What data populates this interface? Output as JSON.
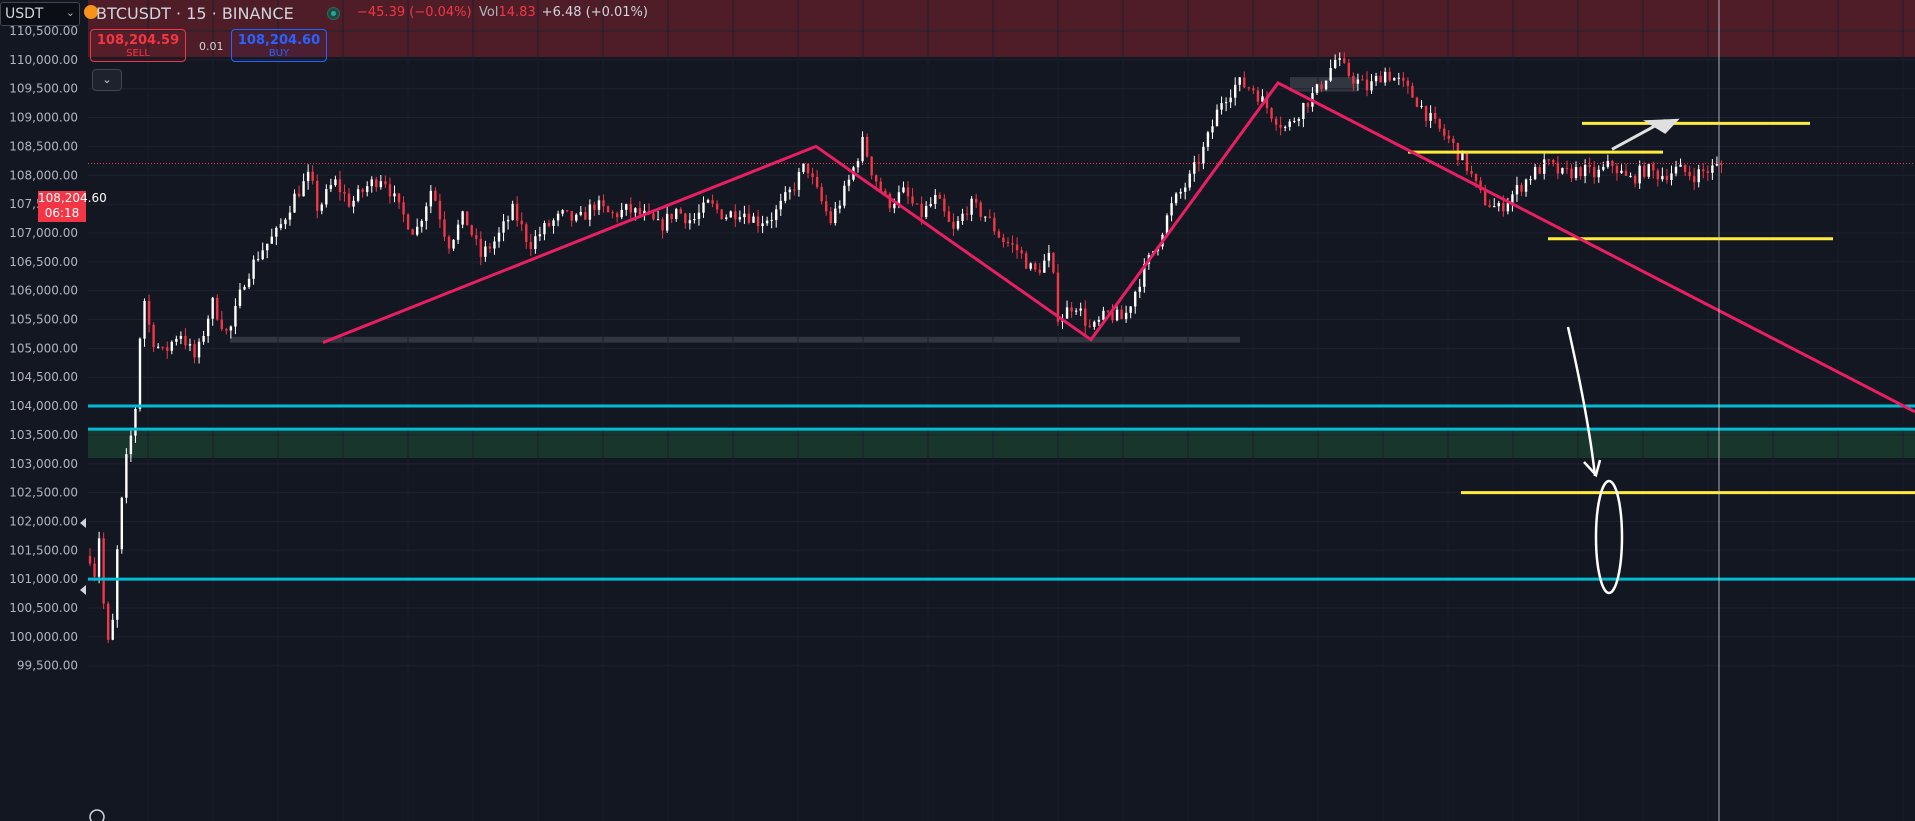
{
  "header": {
    "symbol_select": "USDT",
    "title": "BTCUSDT · 15 · BINANCE",
    "change": "−45.39 (−0.04%)",
    "vol_label": "Vol",
    "vol_value": "14.83",
    "extra": "+6.48 (+0.01%)"
  },
  "trade": {
    "sell_price": "108,204.59",
    "sell_label": "SELL",
    "spread": "0.01",
    "buy_price": "108,204.60",
    "buy_label": "BUY"
  },
  "last_price": {
    "price": "108,204.60",
    "countdown": "06:18"
  },
  "colors": {
    "background": "#131722",
    "candle_up": "#ffffff",
    "candle_down": "#f23645",
    "zigzag": "#e91e63",
    "level_yellow": "#ffeb3b",
    "level_cyan": "#00bcd4",
    "supply_zone": "#5a1f28",
    "demand_zone": "#1b3a2e",
    "annotation": "#ffffff"
  },
  "chart_data": {
    "type": "candlestick",
    "symbol": "BTCUSDT",
    "interval": "15",
    "exchange": "BINANCE",
    "ylim": [
      99300,
      110700
    ],
    "price_axis_ticks": [
      "110,500.00",
      "110,000.00",
      "109,500.00",
      "109,000.00",
      "108,500.00",
      "108,000.00",
      "107,500.00",
      "107,000.00",
      "106,500.00",
      "106,000.00",
      "105,500.00",
      "105,000.00",
      "104,500.00",
      "104,000.00",
      "103,500.00",
      "103,000.00",
      "102,500.00",
      "102,000.00",
      "101,500.00",
      "101,000.00",
      "100,500.00",
      "100,000.00",
      "99,500.00"
    ],
    "price_path": [
      [
        0,
        101400
      ],
      [
        0.5,
        101000
      ],
      [
        1,
        102000
      ],
      [
        1.8,
        100300
      ],
      [
        2.5,
        99600
      ],
      [
        3.5,
        101800
      ],
      [
        4.5,
        103100
      ],
      [
        5.5,
        103800
      ],
      [
        6.5,
        106000
      ],
      [
        7.5,
        105200
      ],
      [
        9,
        104900
      ],
      [
        11,
        105300
      ],
      [
        13,
        104800
      ],
      [
        15,
        105800
      ],
      [
        17,
        105200
      ],
      [
        19,
        106200
      ],
      [
        21,
        106700
      ],
      [
        23,
        107000
      ],
      [
        25,
        107600
      ],
      [
        27,
        108000
      ],
      [
        28,
        107400
      ],
      [
        30,
        107900
      ],
      [
        32,
        107500
      ],
      [
        34,
        107800
      ],
      [
        36,
        108000
      ],
      [
        38,
        107400
      ],
      [
        40,
        107000
      ],
      [
        42,
        107800
      ],
      [
        44,
        106800
      ],
      [
        46,
        107300
      ],
      [
        48,
        106600
      ],
      [
        50,
        106900
      ],
      [
        52,
        107400
      ],
      [
        54,
        106800
      ],
      [
        56,
        107100
      ],
      [
        58,
        107300
      ],
      [
        60,
        107200
      ],
      [
        62,
        107500
      ],
      [
        64,
        107300
      ],
      [
        66,
        107400
      ],
      [
        68,
        107300
      ],
      [
        70,
        107100
      ],
      [
        72,
        107400
      ],
      [
        74,
        107200
      ],
      [
        76,
        107500
      ],
      [
        78,
        107300
      ],
      [
        80,
        107400
      ],
      [
        82,
        107200
      ],
      [
        84,
        107300
      ],
      [
        86,
        107700
      ],
      [
        88,
        108200
      ],
      [
        89,
        107800
      ],
      [
        91,
        107200
      ],
      [
        93,
        107800
      ],
      [
        95,
        108600
      ],
      [
        96,
        108100
      ],
      [
        98,
        107500
      ],
      [
        100,
        107700
      ],
      [
        102,
        107300
      ],
      [
        104,
        107600
      ],
      [
        106,
        107000
      ],
      [
        108,
        107500
      ],
      [
        110,
        107300
      ],
      [
        112,
        106900
      ],
      [
        114,
        106700
      ],
      [
        116,
        106300
      ],
      [
        118,
        106600
      ],
      [
        119,
        105500
      ],
      [
        121,
        105800
      ],
      [
        123,
        105300
      ],
      [
        125,
        105600
      ],
      [
        127,
        105500
      ],
      [
        129,
        106200
      ],
      [
        131,
        106800
      ],
      [
        133,
        107500
      ],
      [
        135,
        107900
      ],
      [
        137,
        108500
      ],
      [
        139,
        109300
      ],
      [
        141,
        109600
      ],
      [
        143,
        109500
      ],
      [
        145,
        109100
      ],
      [
        147,
        108800
      ],
      [
        149,
        109200
      ],
      [
        151,
        109500
      ],
      [
        153,
        110000
      ],
      [
        155,
        109700
      ],
      [
        157,
        109500
      ],
      [
        159,
        109800
      ],
      [
        161,
        109600
      ],
      [
        163,
        109300
      ],
      [
        165,
        108900
      ],
      [
        167,
        108600
      ],
      [
        169,
        108200
      ],
      [
        171,
        107600
      ],
      [
        173,
        107400
      ],
      [
        175,
        107700
      ],
      [
        177,
        108000
      ],
      [
        179,
        108200
      ],
      [
        181,
        108000
      ],
      [
        183,
        108100
      ],
      [
        185,
        108000
      ],
      [
        187,
        108200
      ],
      [
        189,
        107900
      ],
      [
        191,
        108100
      ],
      [
        193,
        108000
      ],
      [
        195,
        108100
      ],
      [
        197,
        108000
      ],
      [
        199,
        108100
      ],
      [
        201,
        108200
      ]
    ],
    "zigzag": [
      [
        105100,
        "start"
      ],
      [
        108500,
        "peak"
      ],
      [
        105200,
        "trough"
      ],
      [
        109600,
        "peak"
      ],
      [
        103900,
        "projection"
      ]
    ],
    "horizontal_levels": [
      {
        "price": 104000,
        "color": "cyan"
      },
      {
        "price": 103600,
        "color": "cyan"
      },
      {
        "price": 101000,
        "color": "cyan"
      },
      {
        "price": 108400,
        "color": "yellow"
      },
      {
        "price": 108900,
        "color": "yellow"
      },
      {
        "price": 106900,
        "color": "yellow"
      },
      {
        "price": 102500,
        "color": "yellow"
      }
    ],
    "zones": [
      {
        "type": "supply",
        "from": 110050,
        "to": 110700
      },
      {
        "type": "demand",
        "from": 103100,
        "to": 103600
      },
      {
        "type": "range",
        "from": 105100,
        "to": 105200
      },
      {
        "type": "range",
        "from": 109500,
        "to": 109700
      }
    ]
  }
}
